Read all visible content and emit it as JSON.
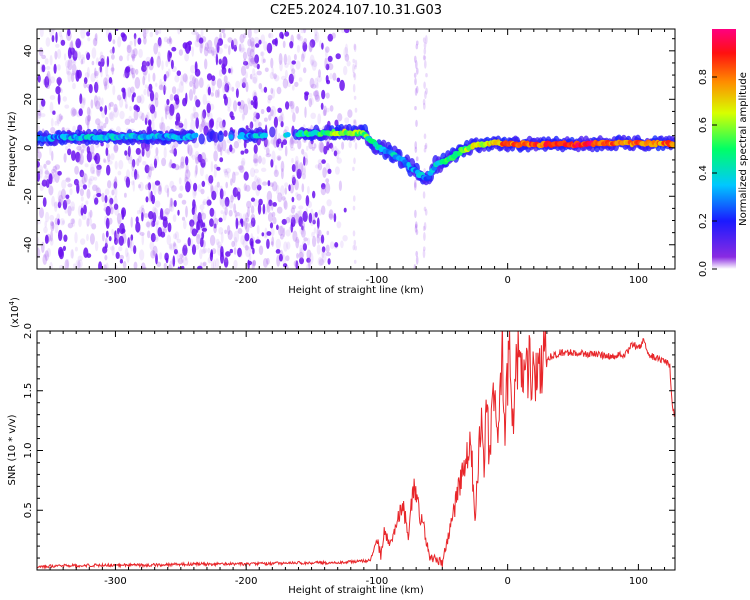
{
  "figure": {
    "title": "C2E5.2024.107.10.31.G03"
  },
  "colors": {
    "snr_line": "#e8262a",
    "spectrogram_noise": "#7a1ff0",
    "axis": "#000000",
    "background": "#ffffff"
  },
  "chart_data": [
    {
      "type": "heatmap",
      "title": "C2E5.2024.107.10.31.G03",
      "xlabel": "Height of straight line (km)",
      "ylabel": "Frequency (Hz)",
      "xlim": [
        -360,
        128
      ],
      "ylim": [
        -50,
        49
      ],
      "x_ticks": [
        -300,
        -200,
        -100,
        0,
        100
      ],
      "x_tick_labels": [
        "-300",
        "-200",
        "-100",
        "0",
        "100"
      ],
      "y_ticks": [
        -40,
        -20,
        0,
        20,
        40
      ],
      "y_tick_labels": [
        "-40",
        "-20",
        "0",
        "20",
        "40"
      ],
      "colorbar": {
        "label": "Normalized spectral amplitude",
        "range": [
          0,
          1
        ],
        "ticks": [
          0.0,
          0.2,
          0.4,
          0.6,
          0.8
        ],
        "tick_labels": [
          "0.0",
          "0.2",
          "0.4",
          "0.6",
          "0.8"
        ],
        "colormap": "rainbow (violet to magenta)"
      },
      "ridge": {
        "x": [
          -360,
          -300,
          -250,
          -200,
          -150,
          -125,
          -110,
          -100,
          -90,
          -80,
          -70,
          -62,
          -55,
          -45,
          -35,
          -25,
          -10,
          0,
          30,
          60,
          90,
          128
        ],
        "frequency": [
          4,
          4.5,
          4.5,
          5,
          6,
          6.5,
          6,
          0.5,
          -2,
          -5,
          -10,
          -13,
          -7,
          -5,
          -1,
          1,
          2,
          1.5,
          1.5,
          1.5,
          2,
          1.5
        ],
        "amplitude": [
          0.3,
          0.35,
          0.3,
          0.3,
          0.45,
          0.6,
          0.55,
          0.4,
          0.35,
          0.35,
          0.3,
          0.3,
          0.35,
          0.45,
          0.55,
          0.6,
          0.75,
          0.8,
          0.85,
          0.9,
          0.8,
          0.8
        ]
      },
      "noise_region_x": [
        -360,
        -120
      ],
      "grid": false
    },
    {
      "type": "line",
      "xlabel": "Height of straight line (km)",
      "ylabel": "SNR (10 * v/v)",
      "y_scale_label": "(x10",
      "y_scale_exponent": "4",
      "y_scale_suffix": ")",
      "xlim": [
        -360,
        128
      ],
      "ylim": [
        0,
        2.0
      ],
      "x_ticks": [
        -300,
        -200,
        -100,
        0,
        100
      ],
      "x_tick_labels": [
        "-300",
        "-200",
        "-100",
        "0",
        "100"
      ],
      "y_ticks": [
        0.5,
        1.0,
        1.5,
        2.0
      ],
      "y_tick_labels": [
        "0.5",
        "1.0",
        "1.5",
        "2.0"
      ],
      "grid": false,
      "series": [
        {
          "x": [
            -360,
            -320,
            -280,
            -240,
            -200,
            -160,
            -140,
            -120,
            -105,
            -100,
            -97,
            -94,
            -90,
            -85,
            -80,
            -76,
            -72,
            -68,
            -64,
            -60,
            -55,
            -50,
            -45,
            -40,
            -36,
            -32,
            -28,
            -25,
            -22,
            -20,
            -18,
            -16,
            -14,
            -12,
            -10,
            -8,
            -6,
            -4,
            -2,
            0,
            2,
            4,
            6,
            8,
            10,
            12,
            14,
            16,
            18,
            20,
            24,
            28,
            32,
            36,
            40,
            50,
            60,
            70,
            80,
            90,
            96,
            100,
            104,
            108,
            112,
            116,
            120,
            124,
            126,
            128
          ],
          "y": [
            0.03,
            0.04,
            0.04,
            0.05,
            0.05,
            0.06,
            0.06,
            0.07,
            0.08,
            0.26,
            0.12,
            0.34,
            0.2,
            0.38,
            0.55,
            0.3,
            0.7,
            0.5,
            0.35,
            0.12,
            0.08,
            0.06,
            0.3,
            0.55,
            0.75,
            0.9,
            1.05,
            0.4,
            1.05,
            1.4,
            0.85,
            1.55,
            0.9,
            1.35,
            1.55,
            1.1,
            1.4,
            1.8,
            1.25,
            1.6,
            1.75,
            1.3,
            1.55,
            1.85,
            1.65,
            1.5,
            1.6,
            1.75,
            1.6,
            1.7,
            1.72,
            1.75,
            1.78,
            1.8,
            1.82,
            1.82,
            1.81,
            1.8,
            1.79,
            1.8,
            1.9,
            1.85,
            1.92,
            1.8,
            1.78,
            1.76,
            1.74,
            1.72,
            1.35,
            1.3
          ]
        }
      ]
    }
  ]
}
